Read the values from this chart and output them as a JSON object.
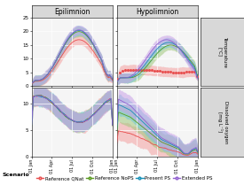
{
  "panel_titles_col": [
    "Epilimnion",
    "Hypolimnion"
  ],
  "ylabel_temp": "Temperature\n[°C]",
  "ylabel_do": "Dissolved oxygen\n[mg L⁻¹]",
  "ylim_temp": [
    0,
    25
  ],
  "ylim_do": [
    0,
    13
  ],
  "yticks_temp": [
    0,
    5,
    10,
    15,
    20,
    25
  ],
  "yticks_do": [
    0,
    5,
    10
  ],
  "scenarios": [
    "Reference QNat",
    "Reference NoPS",
    "Present PS",
    "Extended PS"
  ],
  "fill_colors": {
    "Reference QNat": "#f4a0a0",
    "Reference NoPS": "#a0c87c",
    "Present PS": "#70c8d8",
    "Extended PS": "#c8a0e8"
  },
  "line_colors": {
    "Reference QNat": "#e85050",
    "Reference NoPS": "#5a9a20",
    "Present PS": "#1890b8",
    "Extended PS": "#9060d0"
  },
  "background_panel": "#f5f5f5",
  "background_strip": "#d8d8d8",
  "grid_color": "#ffffff",
  "legend_label": "Scenario",
  "month_tick_pos": [
    0,
    90,
    181,
    273,
    364
  ],
  "month_labels": [
    "01 Jan",
    "01 Apr",
    "01 Jul",
    "01 Oct",
    "01 Jan"
  ]
}
